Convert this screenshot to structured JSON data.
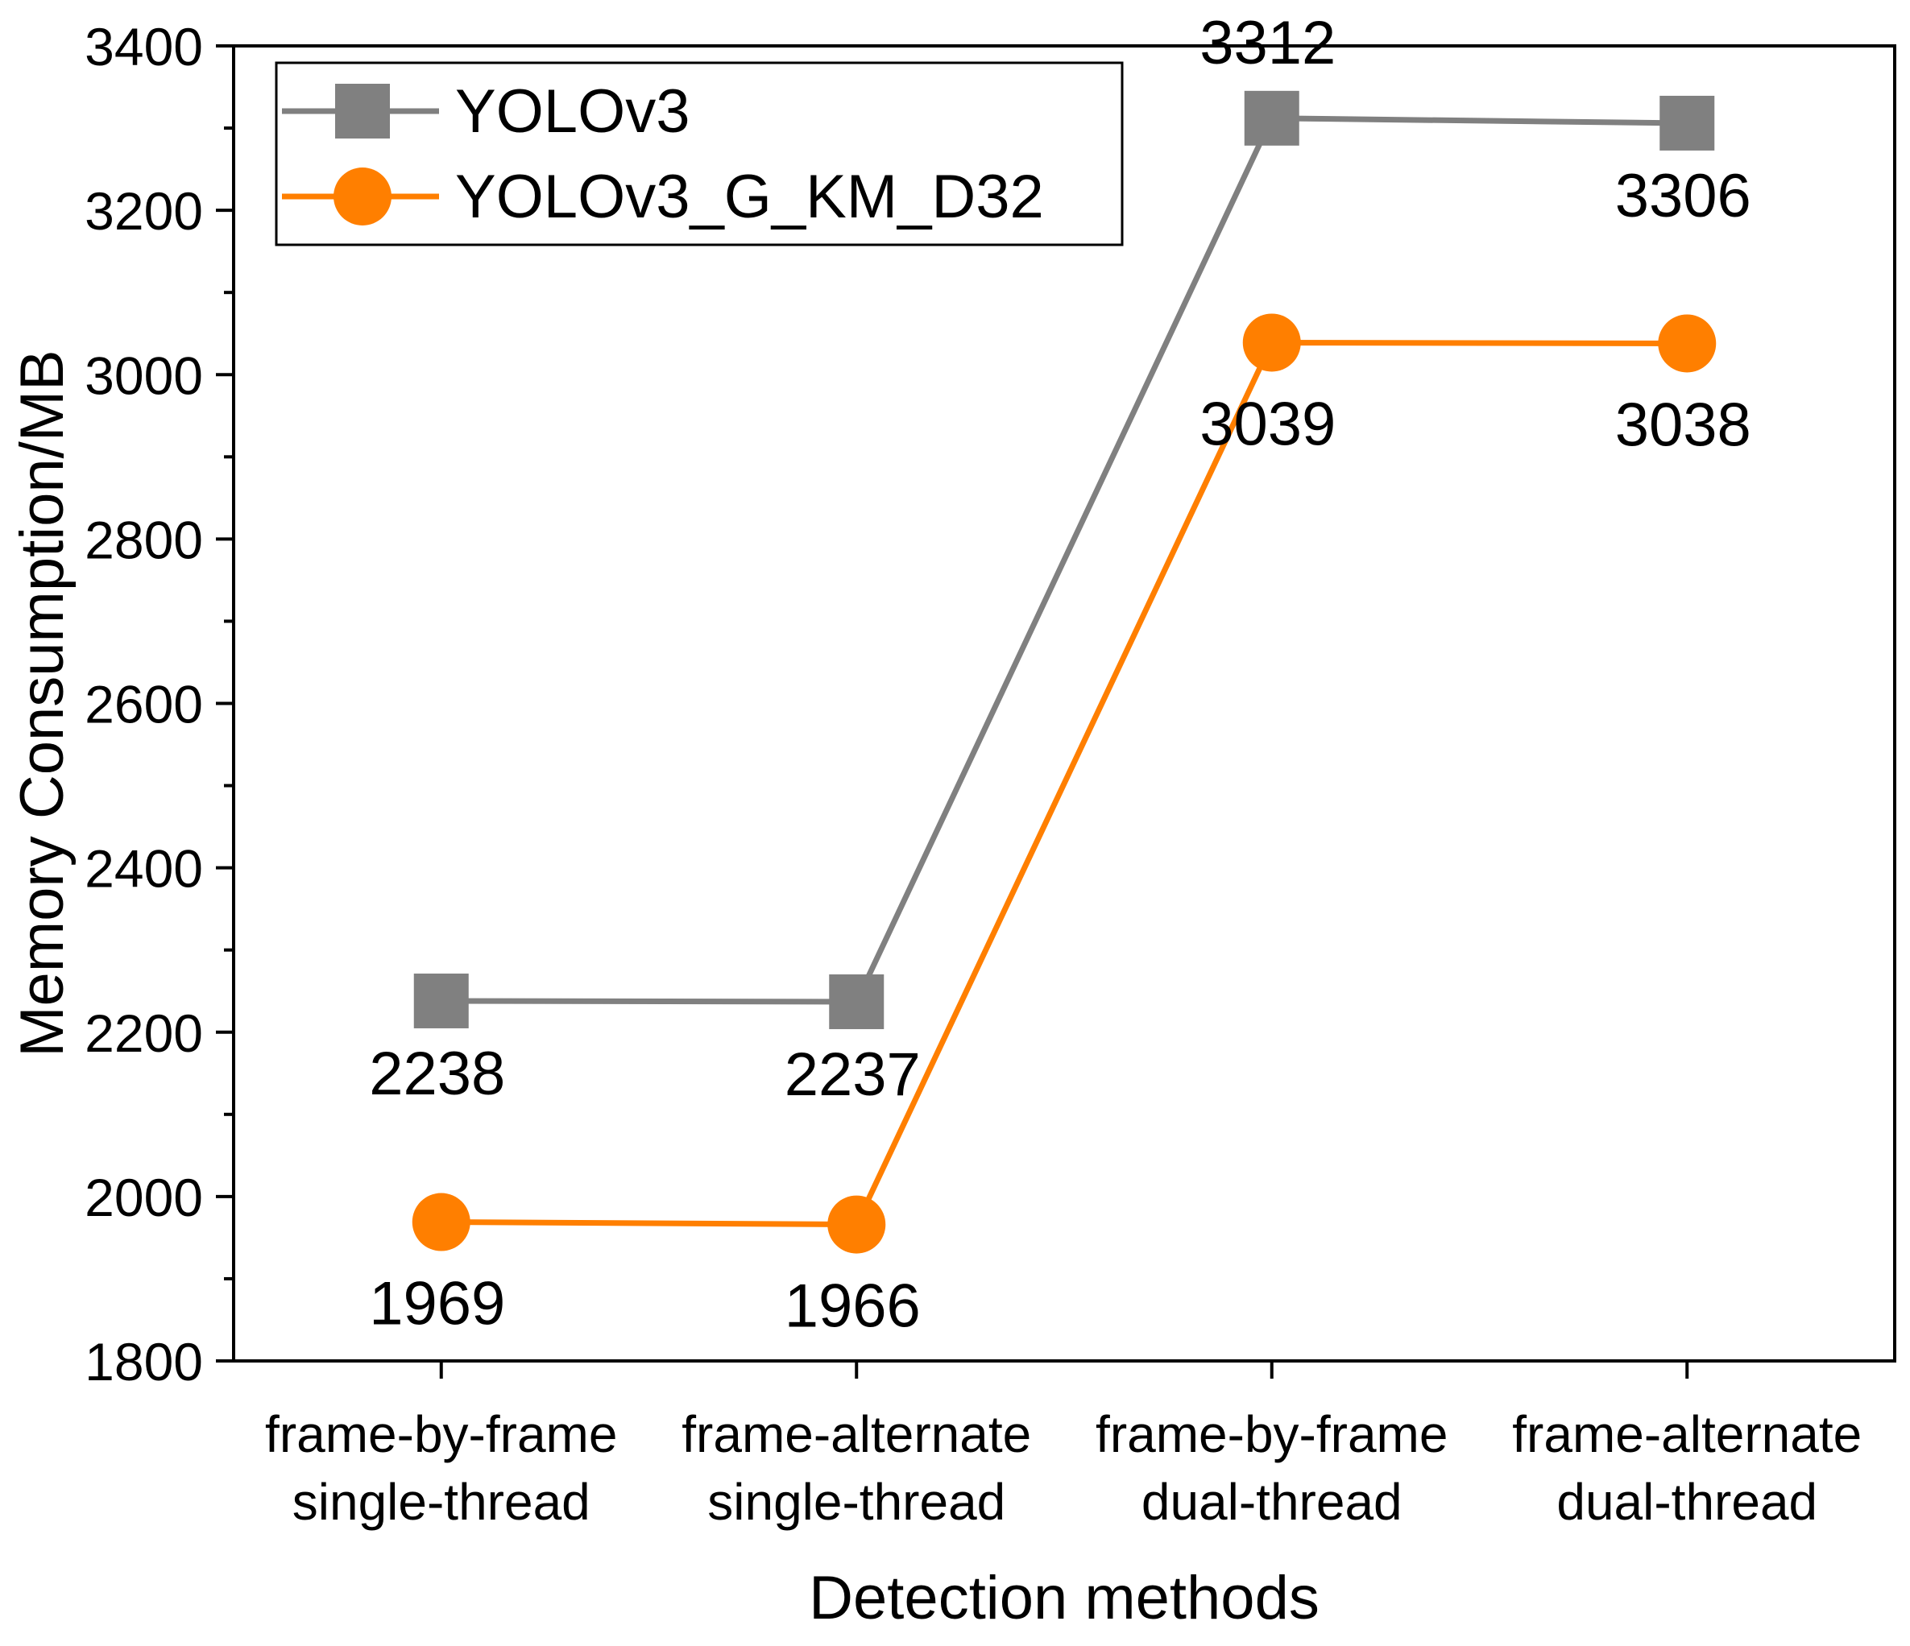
{
  "chart_data": {
    "type": "line",
    "title": "",
    "xlabel": "Detection methods",
    "ylabel": "Memory Consumption/MB",
    "categories": [
      [
        "frame-by-frame",
        "single-thread"
      ],
      [
        "frame-alternate",
        "single-thread"
      ],
      [
        "frame-by-frame",
        "dual-thread"
      ],
      [
        "frame-alternate",
        "dual-thread"
      ]
    ],
    "ylim": [
      1800,
      3400
    ],
    "yticks": [
      1800,
      2000,
      2200,
      2400,
      2600,
      2800,
      3000,
      3200,
      3400
    ],
    "grid": false,
    "legend_position": "top-left",
    "series": [
      {
        "name": "YOLOv3",
        "marker": "square",
        "color": "#808080",
        "values": [
          2238,
          2237,
          3312,
          3306
        ],
        "labels": [
          "2238",
          "2237",
          "3312",
          "3306"
        ]
      },
      {
        "name": "YOLOv3_G_KM_D32",
        "marker": "circle",
        "color": "#FF7F00",
        "values": [
          1969,
          1966,
          3039,
          3038
        ],
        "labels": [
          "1969",
          "1966",
          "3039",
          "3038"
        ]
      }
    ]
  }
}
